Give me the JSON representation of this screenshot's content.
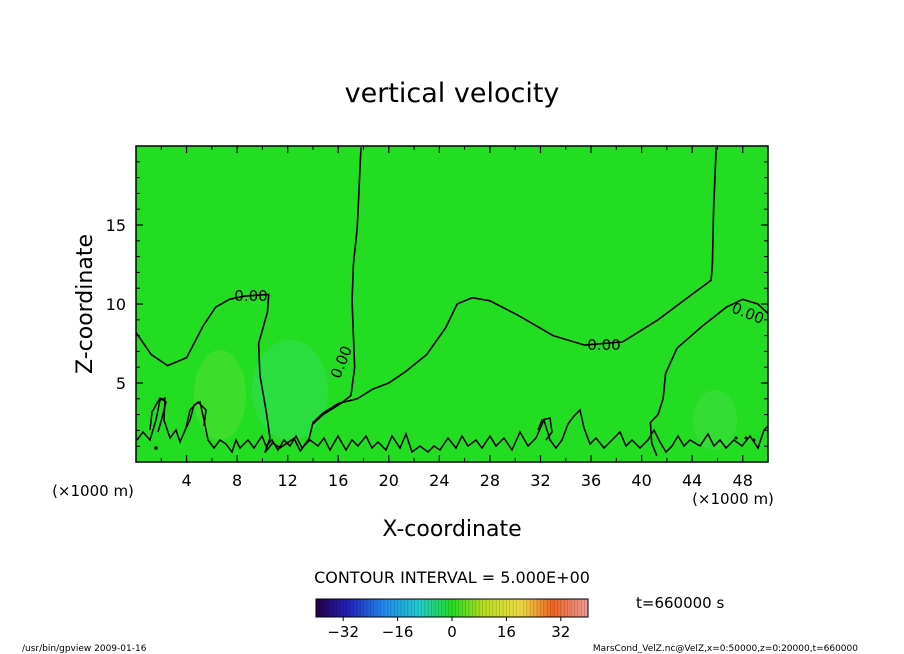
{
  "chart_data": {
    "type": "heatmap",
    "title": "vertical velocity",
    "xlabel": "X-coordinate",
    "ylabel": "Z-coordinate",
    "x_unit": "(×1000 m)",
    "y_unit": "(×1000 m)",
    "xlim": [
      0,
      50
    ],
    "ylim": [
      0,
      20
    ],
    "x_ticks": [
      4,
      8,
      12,
      16,
      20,
      24,
      28,
      32,
      36,
      40,
      44,
      48
    ],
    "y_ticks": [
      5,
      10,
      15
    ],
    "contour_interval_text": "CONTOUR INTERVAL = 5.000E+00",
    "contour_labels": [
      "0.00",
      "0.00",
      "0.00",
      "0.00"
    ],
    "zero_contour_main": [
      [
        0,
        8.2
      ],
      [
        1.2,
        6.8
      ],
      [
        2.5,
        6.1
      ],
      [
        4,
        6.6
      ],
      [
        5.3,
        8.6
      ],
      [
        6.3,
        9.8
      ],
      [
        7.4,
        10.3
      ],
      [
        8.6,
        10.5
      ],
      [
        10.5,
        10.6
      ],
      [
        10.4,
        9.5
      ],
      [
        9.7,
        7.5
      ],
      [
        9.8,
        5.5
      ],
      [
        10.3,
        3.2
      ],
      [
        10.6,
        1.5
      ],
      [
        10.2,
        0.6
      ],
      [
        10.8,
        1.2
      ],
      [
        11.4,
        0.9
      ],
      [
        12.5,
        1.5
      ],
      [
        13,
        0.7
      ],
      [
        13.7,
        1.5
      ],
      [
        14,
        2.5
      ],
      [
        14.8,
        3.1
      ],
      [
        16,
        3.7
      ],
      [
        17.5,
        4
      ],
      [
        18.7,
        4.6
      ],
      [
        20,
        5
      ],
      [
        21.3,
        5.7
      ],
      [
        23,
        6.8
      ],
      [
        24.5,
        8.5
      ],
      [
        25.4,
        10
      ],
      [
        26.6,
        10.4
      ],
      [
        28,
        10.2
      ],
      [
        30.2,
        9.3
      ],
      [
        33,
        8
      ],
      [
        35.5,
        7.4
      ],
      [
        38.5,
        7.6
      ],
      [
        41.3,
        9
      ],
      [
        43.8,
        10.5
      ],
      [
        45.5,
        11.5
      ],
      [
        45.6,
        12.5
      ],
      [
        45.7,
        16
      ],
      [
        45.9,
        19.9
      ]
    ],
    "zero_contour_mid": [
      [
        14,
        2.4
      ],
      [
        14.8,
        3
      ],
      [
        16.2,
        3.7
      ],
      [
        17,
        4.2
      ],
      [
        17.3,
        6
      ],
      [
        17.2,
        8
      ],
      [
        17.1,
        10.2
      ],
      [
        17.2,
        12.5
      ],
      [
        17.5,
        14.8
      ],
      [
        17.6,
        16.5
      ],
      [
        17.7,
        18.2
      ],
      [
        17.8,
        19.9
      ]
    ],
    "zero_contour_right": [
      [
        50,
        9.4
      ],
      [
        49.2,
        10
      ],
      [
        48,
        10.3
      ],
      [
        46.7,
        9.8
      ],
      [
        44.8,
        8.6
      ],
      [
        42.8,
        7.2
      ],
      [
        41.9,
        5.6
      ],
      [
        41.7,
        4
      ],
      [
        41.3,
        3
      ],
      [
        40.7,
        2.5
      ],
      [
        40.8,
        1.2
      ],
      [
        41.2,
        0.4
      ]
    ],
    "colorbar": {
      "min": -40,
      "max": 40,
      "tick_values": [
        -32,
        -16,
        0,
        16,
        32
      ],
      "tick_labels": [
        "−32",
        "−16",
        "0",
        "16",
        "32"
      ]
    },
    "time_text": "t=660000 s",
    "background_value": 0,
    "background_color": "#22dd22"
  },
  "footer": {
    "left": "/usr/bin/gpview  2009-01-16",
    "right": "MarsCond_VelZ.nc@VelZ,x=0:50000,z=0:20000,t=660000"
  }
}
